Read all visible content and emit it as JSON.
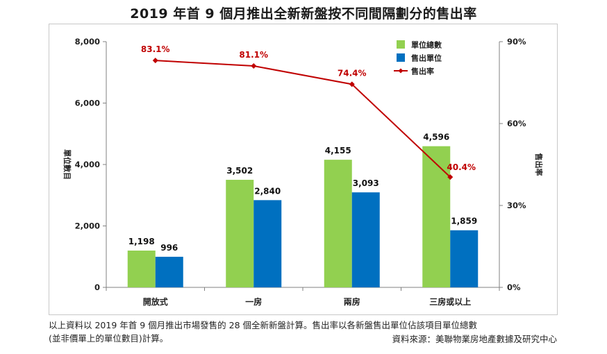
{
  "title": "2019 年首 9 個月推出全新新盤按不同間隔劃分的售出率",
  "chart_data": {
    "type": "bar",
    "categories": [
      "開放式",
      "一房",
      "兩房",
      "三房或以上"
    ],
    "series": [
      {
        "name": "單位總數",
        "values": [
          1198,
          3502,
          4155,
          4596
        ],
        "axis": "left",
        "color": "#92D050"
      },
      {
        "name": "售出單位",
        "values": [
          996,
          2840,
          3093,
          1859
        ],
        "axis": "left",
        "color": "#0070C0"
      },
      {
        "name": "售出率",
        "type": "line",
        "values": [
          83.1,
          81.1,
          74.4,
          40.4
        ],
        "axis": "right",
        "color": "#C00000"
      }
    ],
    "bar_labels": [
      [
        "1,198",
        "3,502",
        "4,155",
        "4,596"
      ],
      [
        "996",
        "2,840",
        "3,093",
        "1,859"
      ]
    ],
    "line_labels": [
      "83.1%",
      "81.1%",
      "74.4%",
      "40.4%"
    ],
    "ylabel": "單位數目",
    "y2label": "售出率",
    "ylim": [
      0,
      8000
    ],
    "y2lim": [
      0,
      90
    ],
    "yticks": [
      0,
      2000,
      4000,
      6000,
      8000
    ],
    "ytick_labels": [
      "0",
      "2,000",
      "4,000",
      "6,000",
      "8,000"
    ],
    "y2ticks": [
      0,
      30,
      60,
      90
    ],
    "y2tick_labels": [
      "0%",
      "30%",
      "60%",
      "90%"
    ],
    "grid": false,
    "legend_position": "top-right"
  },
  "note": {
    "line1": "以上資料以 2019 年首 9 個月推出市場發售的 28 個全新新盤計算。售出率以各新盤售出單位佔該項目單位總數",
    "line2": "(並非價單上的單位數目)計算。"
  },
  "source": "資料來源：美聯物業房地產數據及研究中心"
}
